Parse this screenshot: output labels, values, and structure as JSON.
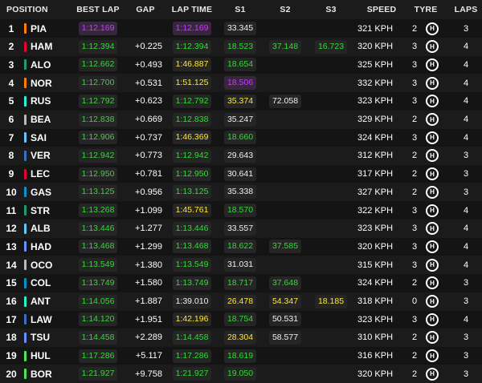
{
  "headers": {
    "position": "POSITION",
    "best_lap": "BEST LAP",
    "gap": "GAP",
    "lap_time": "LAP TIME",
    "s1": "S1",
    "s2": "S2",
    "s3": "S3",
    "speed": "SPEED",
    "tyre": "TYRE",
    "laps": "LAPS"
  },
  "colors": {
    "fastest_overall": "#c63aff",
    "personal_best": "#36d838",
    "yellow": "#ffe53a"
  },
  "tyre_icon": "hard-tyre-icon",
  "drivers": [
    {
      "pos": "1",
      "code": "PIA",
      "team_color": "#ff8000",
      "best": "1:12.169",
      "best_c": "purple",
      "gap": "",
      "lap": "1:12.169",
      "lap_c": "purple",
      "s1": "33.345",
      "s1_c": "white",
      "s2": "",
      "s2_c": "none",
      "s3": "",
      "s3_c": "none",
      "speed": "321 KPH",
      "tyre_age": "2",
      "tyre": "H",
      "laps": "3"
    },
    {
      "pos": "2",
      "code": "HAM",
      "team_color": "#e8002d",
      "best": "1:12.394",
      "best_c": "green",
      "gap": "+0.225",
      "lap": "1:12.394",
      "lap_c": "green",
      "s1": "18.523",
      "s1_c": "green",
      "s2": "37.148",
      "s2_c": "green",
      "s3": "16.723",
      "s3_c": "green",
      "speed": "320 KPH",
      "tyre_age": "3",
      "tyre": "H",
      "laps": "4"
    },
    {
      "pos": "3",
      "code": "ALO",
      "team_color": "#229971",
      "best": "1:12.662",
      "best_c": "green",
      "gap": "+0.493",
      "lap": "1:46.887",
      "lap_c": "yellow",
      "s1": "18.654",
      "s1_c": "green",
      "s2": "",
      "s2_c": "none",
      "s3": "",
      "s3_c": "none",
      "speed": "325 KPH",
      "tyre_age": "3",
      "tyre": "H",
      "laps": "4"
    },
    {
      "pos": "4",
      "code": "NOR",
      "team_color": "#ff8000",
      "best": "1:12.700",
      "best_c": "green",
      "gap": "+0.531",
      "lap": "1:51.125",
      "lap_c": "yellow",
      "s1": "18.506",
      "s1_c": "purple",
      "s2": "",
      "s2_c": "none",
      "s3": "",
      "s3_c": "none",
      "speed": "332 KPH",
      "tyre_age": "3",
      "tyre": "H",
      "laps": "4"
    },
    {
      "pos": "5",
      "code": "RUS",
      "team_color": "#27f4d2",
      "best": "1:12.792",
      "best_c": "green",
      "gap": "+0.623",
      "lap": "1:12.792",
      "lap_c": "green",
      "s1": "35.374",
      "s1_c": "yellow",
      "s2": "72.058",
      "s2_c": "white",
      "s3": "",
      "s3_c": "none",
      "speed": "323 KPH",
      "tyre_age": "3",
      "tyre": "H",
      "laps": "4"
    },
    {
      "pos": "6",
      "code": "BEA",
      "team_color": "#b6babd",
      "best": "1:12.838",
      "best_c": "green",
      "gap": "+0.669",
      "lap": "1:12.838",
      "lap_c": "green",
      "s1": "35.247",
      "s1_c": "white",
      "s2": "",
      "s2_c": "none",
      "s3": "",
      "s3_c": "none",
      "speed": "329 KPH",
      "tyre_age": "2",
      "tyre": "H",
      "laps": "4"
    },
    {
      "pos": "7",
      "code": "SAI",
      "team_color": "#64c4ff",
      "best": "1:12.906",
      "best_c": "green",
      "gap": "+0.737",
      "lap": "1:46.369",
      "lap_c": "yellow",
      "s1": "18.660",
      "s1_c": "green",
      "s2": "",
      "s2_c": "none",
      "s3": "",
      "s3_c": "none",
      "speed": "324 KPH",
      "tyre_age": "3",
      "tyre": "H",
      "laps": "4"
    },
    {
      "pos": "8",
      "code": "VER",
      "team_color": "#3671c6",
      "best": "1:12.942",
      "best_c": "green",
      "gap": "+0.773",
      "lap": "1:12.942",
      "lap_c": "green",
      "s1": "29.643",
      "s1_c": "white",
      "s2": "",
      "s2_c": "none",
      "s3": "",
      "s3_c": "none",
      "speed": "312 KPH",
      "tyre_age": "2",
      "tyre": "H",
      "laps": "3"
    },
    {
      "pos": "9",
      "code": "LEC",
      "team_color": "#e8002d",
      "best": "1:12.950",
      "best_c": "green",
      "gap": "+0.781",
      "lap": "1:12.950",
      "lap_c": "green",
      "s1": "30.641",
      "s1_c": "white",
      "s2": "",
      "s2_c": "none",
      "s3": "",
      "s3_c": "none",
      "speed": "317 KPH",
      "tyre_age": "2",
      "tyre": "H",
      "laps": "3"
    },
    {
      "pos": "10",
      "code": "GAS",
      "team_color": "#0093cc",
      "best": "1:13.125",
      "best_c": "green",
      "gap": "+0.956",
      "lap": "1:13.125",
      "lap_c": "green",
      "s1": "35.338",
      "s1_c": "white",
      "s2": "",
      "s2_c": "none",
      "s3": "",
      "s3_c": "none",
      "speed": "327 KPH",
      "tyre_age": "2",
      "tyre": "H",
      "laps": "3"
    },
    {
      "pos": "11",
      "code": "STR",
      "team_color": "#229971",
      "best": "1:13.268",
      "best_c": "green",
      "gap": "+1.099",
      "lap": "1:45.761",
      "lap_c": "yellow",
      "s1": "18.570",
      "s1_c": "green",
      "s2": "",
      "s2_c": "none",
      "s3": "",
      "s3_c": "none",
      "speed": "322 KPH",
      "tyre_age": "3",
      "tyre": "H",
      "laps": "4"
    },
    {
      "pos": "12",
      "code": "ALB",
      "team_color": "#64c4ff",
      "best": "1:13.446",
      "best_c": "green",
      "gap": "+1.277",
      "lap": "1:13.446",
      "lap_c": "green",
      "s1": "33.557",
      "s1_c": "white",
      "s2": "",
      "s2_c": "none",
      "s3": "",
      "s3_c": "none",
      "speed": "323 KPH",
      "tyre_age": "3",
      "tyre": "H",
      "laps": "4"
    },
    {
      "pos": "13",
      "code": "HAD",
      "team_color": "#6692ff",
      "best": "1:13.468",
      "best_c": "green",
      "gap": "+1.299",
      "lap": "1:13.468",
      "lap_c": "green",
      "s1": "18.622",
      "s1_c": "green",
      "s2": "37.585",
      "s2_c": "green",
      "s3": "",
      "s3_c": "none",
      "speed": "320 KPH",
      "tyre_age": "3",
      "tyre": "H",
      "laps": "4"
    },
    {
      "pos": "14",
      "code": "OCO",
      "team_color": "#b6babd",
      "best": "1:13.549",
      "best_c": "green",
      "gap": "+1.380",
      "lap": "1:13.549",
      "lap_c": "green",
      "s1": "31.031",
      "s1_c": "white",
      "s2": "",
      "s2_c": "none",
      "s3": "",
      "s3_c": "none",
      "speed": "315 KPH",
      "tyre_age": "3",
      "tyre": "H",
      "laps": "4"
    },
    {
      "pos": "15",
      "code": "COL",
      "team_color": "#0093cc",
      "best": "1:13.749",
      "best_c": "green",
      "gap": "+1.580",
      "lap": "1:13.749",
      "lap_c": "green",
      "s1": "18.717",
      "s1_c": "green",
      "s2": "37.648",
      "s2_c": "green",
      "s3": "",
      "s3_c": "none",
      "speed": "324 KPH",
      "tyre_age": "2",
      "tyre": "H",
      "laps": "3"
    },
    {
      "pos": "16",
      "code": "ANT",
      "team_color": "#27f4d2",
      "best": "1:14.056",
      "best_c": "green",
      "gap": "+1.887",
      "lap": "1:39.010",
      "lap_c": "white",
      "s1": "26.478",
      "s1_c": "yellow",
      "s2": "54.347",
      "s2_c": "yellow",
      "s3": "18.185",
      "s3_c": "yellow",
      "speed": "318 KPH",
      "tyre_age": "0",
      "tyre": "H",
      "laps": "3"
    },
    {
      "pos": "17",
      "code": "LAW",
      "team_color": "#3671c6",
      "best": "1:14.120",
      "best_c": "green",
      "gap": "+1.951",
      "lap": "1:42.196",
      "lap_c": "yellow",
      "s1": "18.754",
      "s1_c": "green",
      "s2": "50.531",
      "s2_c": "white",
      "s3": "",
      "s3_c": "none",
      "speed": "323 KPH",
      "tyre_age": "3",
      "tyre": "H",
      "laps": "4"
    },
    {
      "pos": "18",
      "code": "TSU",
      "team_color": "#6692ff",
      "best": "1:14.458",
      "best_c": "green",
      "gap": "+2.289",
      "lap": "1:14.458",
      "lap_c": "green",
      "s1": "28.304",
      "s1_c": "yellow",
      "s2": "58.577",
      "s2_c": "white",
      "s3": "",
      "s3_c": "none",
      "speed": "310 KPH",
      "tyre_age": "2",
      "tyre": "H",
      "laps": "3"
    },
    {
      "pos": "19",
      "code": "HUL",
      "team_color": "#52e252",
      "best": "1:17.286",
      "best_c": "green",
      "gap": "+5.117",
      "lap": "1:17.286",
      "lap_c": "green",
      "s1": "18.619",
      "s1_c": "green",
      "s2": "",
      "s2_c": "none",
      "s3": "",
      "s3_c": "none",
      "speed": "316 KPH",
      "tyre_age": "2",
      "tyre": "H",
      "laps": "3"
    },
    {
      "pos": "20",
      "code": "BOR",
      "team_color": "#52e252",
      "best": "1:21.927",
      "best_c": "green",
      "gap": "+9.758",
      "lap": "1:21.927",
      "lap_c": "green",
      "s1": "19.050",
      "s1_c": "green",
      "s2": "",
      "s2_c": "none",
      "s3": "",
      "s3_c": "none",
      "speed": "320 KPH",
      "tyre_age": "2",
      "tyre": "H",
      "laps": "3"
    }
  ]
}
